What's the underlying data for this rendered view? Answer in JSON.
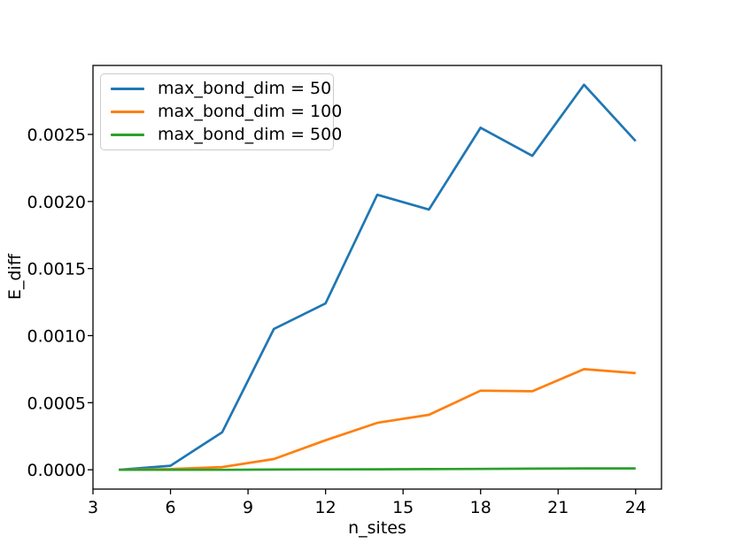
{
  "figure": {
    "background": "#ffffff",
    "spine_color": "#000000",
    "text_color": "#000000"
  },
  "chart_data": {
    "type": "line",
    "title": "",
    "xlabel": "n_sites",
    "ylabel": "E_diff",
    "xlim": [
      3,
      25
    ],
    "ylim": [
      -0.000144,
      0.003014
    ],
    "x_ticks": [
      "3",
      "6",
      "9",
      "12",
      "15",
      "18",
      "21",
      "24"
    ],
    "x_tick_values": [
      3,
      6,
      9,
      12,
      15,
      18,
      21,
      24
    ],
    "y_ticks": [
      "0.0000",
      "0.0005",
      "0.0010",
      "0.0015",
      "0.0020",
      "0.0025"
    ],
    "y_tick_values": [
      0.0,
      0.0005,
      0.001,
      0.0015,
      0.002,
      0.0025
    ],
    "grid": false,
    "legend_position": "upper left",
    "x": [
      4,
      6,
      8,
      10,
      12,
      14,
      16,
      18,
      20,
      22,
      24
    ],
    "series": [
      {
        "name": "max_bond_dim = 50",
        "color": "#1f77b4",
        "values": [
          0.0,
          3e-05,
          0.00028,
          0.00105,
          0.00124,
          0.00205,
          0.00194,
          0.00255,
          0.00234,
          0.00287,
          0.00245
        ]
      },
      {
        "name": "max_bond_dim = 100",
        "color": "#ff7f0e",
        "values": [
          0.0,
          5e-06,
          2e-05,
          8e-05,
          0.00022,
          0.00035,
          0.00041,
          0.00059,
          0.000585,
          0.00075,
          0.00072
        ]
      },
      {
        "name": "max_bond_dim = 500",
        "color": "#2ca02c",
        "values": [
          0.0,
          0.0,
          0.0,
          2e-06,
          3e-06,
          4e-06,
          5e-06,
          6e-06,
          8e-06,
          1e-05,
          1e-05
        ]
      }
    ]
  }
}
